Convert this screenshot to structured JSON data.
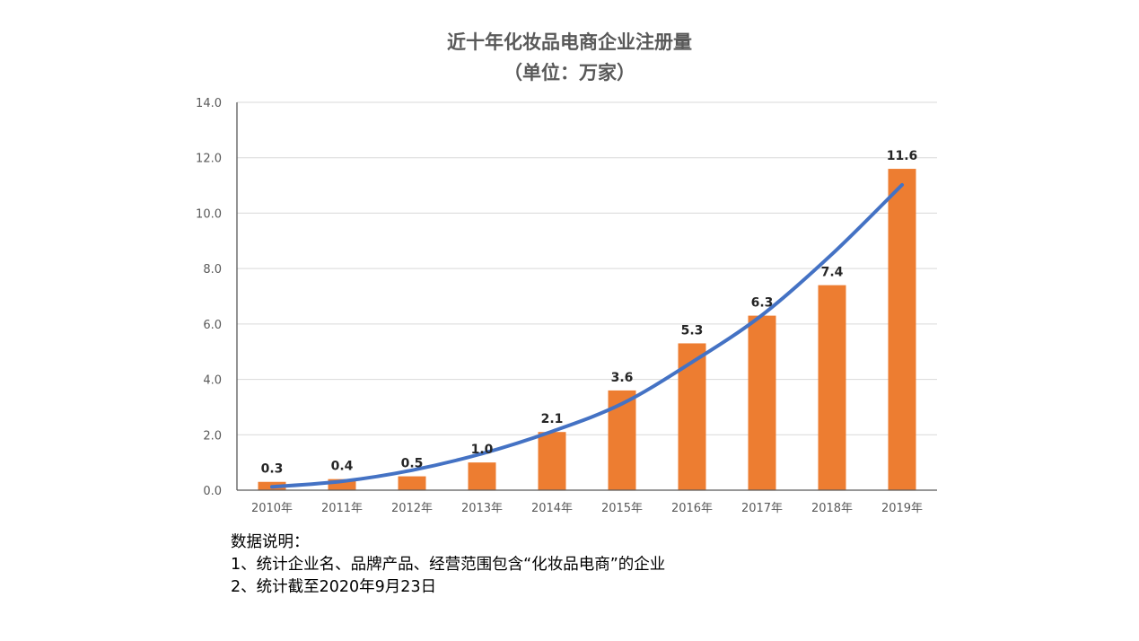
{
  "chart_data": {
    "type": "bar",
    "title": "近十年化妆品电商企业注册量",
    "subtitle": "（单位：万家）",
    "categories": [
      "2010年",
      "2011年",
      "2012年",
      "2013年",
      "2014年",
      "2015年",
      "2016年",
      "2017年",
      "2018年",
      "2019年"
    ],
    "values": [
      0.3,
      0.4,
      0.5,
      1.0,
      2.1,
      3.6,
      5.3,
      6.3,
      7.4,
      11.6
    ],
    "value_labels": [
      "0.3",
      "0.4",
      "0.5",
      "1.0",
      "2.1",
      "3.6",
      "5.3",
      "6.3",
      "7.4",
      "11.6"
    ],
    "ylim": [
      0,
      14
    ],
    "yticks": [
      "0.0",
      "2.0",
      "4.0",
      "6.0",
      "8.0",
      "10.0",
      "12.0",
      "14.0"
    ],
    "ytick_values": [
      0,
      2,
      4,
      6,
      8,
      10,
      12,
      14
    ],
    "xlabel": "",
    "ylabel": "",
    "grid": true,
    "legend": "none",
    "trendline": {
      "type": "polynomial",
      "values": [
        0.12,
        0.32,
        0.72,
        1.32,
        2.12,
        3.12,
        4.62,
        6.32,
        8.52,
        11.02
      ]
    },
    "colors": {
      "bar": "#ED7D31",
      "trendline": "#4472C4",
      "grid": "#D9D9D9",
      "axis": "#595959",
      "tick_text": "#595959",
      "value_label": "#262626"
    }
  },
  "notes": {
    "heading": "数据说明：",
    "line1": "1、统计企业名、品牌产品、经营范围包含“化妆品电商”的企业",
    "line2": "2、统计截至2020年9月23日"
  }
}
